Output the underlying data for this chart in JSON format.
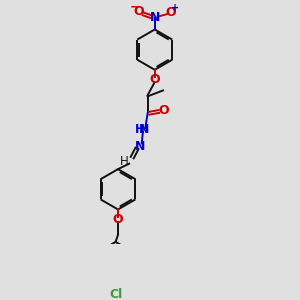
{
  "bg_color": "#e0e0e0",
  "bond_color": "#111111",
  "oxygen_color": "#cc0000",
  "nitrogen_color": "#0000cc",
  "chlorine_color": "#3a9a3a",
  "figsize": [
    3.0,
    3.0
  ],
  "dpi": 100,
  "xlim": [
    0.05,
    0.95
  ],
  "ylim": [
    0.02,
    1.02
  ]
}
